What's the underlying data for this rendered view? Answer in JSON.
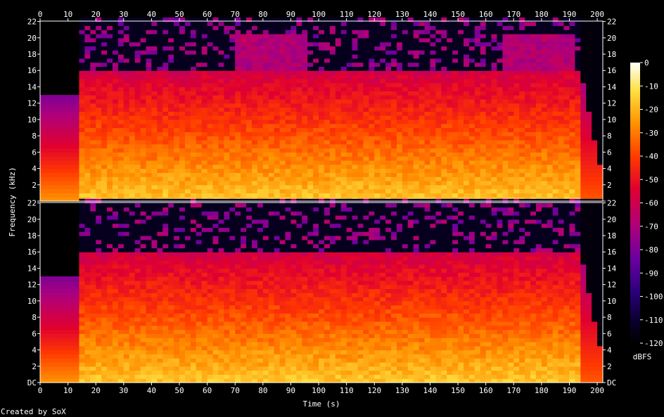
{
  "chart_data": {
    "type": "heatmap",
    "title": "",
    "xlabel": "Time (s)",
    "ylabel": "Frequency (kHz)",
    "x_range": [
      0,
      202
    ],
    "x_ticks": [
      0,
      10,
      20,
      30,
      40,
      50,
      60,
      70,
      80,
      90,
      100,
      110,
      120,
      130,
      140,
      150,
      160,
      170,
      180,
      190,
      200
    ],
    "y_range_khz": [
      0,
      22.05
    ],
    "channels": [
      {
        "name": "",
        "y_ticks": [
          "22",
          "20",
          "18",
          "16",
          "14",
          "12",
          "10",
          "8",
          "6",
          "4",
          "2",
          ""
        ]
      },
      {
        "name": "",
        "y_ticks": [
          "22",
          "20",
          "18",
          "16",
          "14",
          "12",
          "10",
          "8",
          "6",
          "4",
          "2",
          "DC"
        ]
      }
    ],
    "colorbar": {
      "label": "dBFS",
      "ticks": [
        0,
        -10,
        -20,
        -30,
        -40,
        -50,
        -60,
        -70,
        -80,
        -90,
        -100,
        -110,
        -120
      ],
      "range": [
        -120,
        0
      ]
    },
    "lowpass_cutoff_khz": 16,
    "audio_start_s": 13,
    "fadeout_start_s": 193,
    "end_s": 202,
    "grid": false
  },
  "footer": "Created by SoX"
}
